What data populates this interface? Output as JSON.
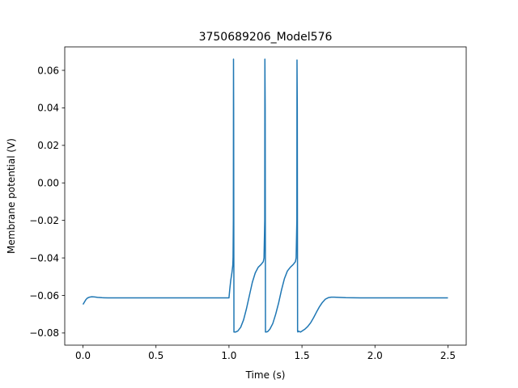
{
  "chart_data": {
    "type": "line",
    "title": "3750689206_Model576",
    "xlabel": "Time (s)",
    "ylabel": "Membrane potential (V)",
    "xlim": [
      -0.125,
      2.625
    ],
    "ylim": [
      -0.0865,
      0.0725
    ],
    "xticks": [
      0.0,
      0.5,
      1.0,
      1.5,
      2.0,
      2.5
    ],
    "xtick_labels": [
      "0.0",
      "0.5",
      "1.0",
      "1.5",
      "2.0",
      "2.5"
    ],
    "yticks": [
      -0.08,
      -0.06,
      -0.04,
      -0.02,
      0.0,
      0.02,
      0.04,
      0.06
    ],
    "ytick_labels": [
      "−0.08",
      "−0.06",
      "−0.04",
      "−0.02",
      "0.00",
      "0.02",
      "0.04",
      "0.06"
    ],
    "grid": false,
    "line_color": "#1f77b4",
    "series": [
      {
        "x": [
          0.0,
          0.01,
          0.02,
          0.03,
          0.045,
          0.06,
          0.08,
          0.1,
          0.13,
          0.17,
          0.2,
          0.3,
          0.5,
          0.7,
          0.9,
          1.0,
          1.005,
          1.012,
          1.02,
          1.026,
          1.028,
          1.03,
          1.031,
          1.032,
          1.034,
          1.045,
          1.06,
          1.08,
          1.1,
          1.12,
          1.14,
          1.16,
          1.18,
          1.2,
          1.22,
          1.235,
          1.24,
          1.245,
          1.246,
          1.248,
          1.25,
          1.252,
          1.254,
          1.265,
          1.28,
          1.3,
          1.32,
          1.34,
          1.36,
          1.38,
          1.4,
          1.42,
          1.44,
          1.455,
          1.46,
          1.465,
          1.466,
          1.468,
          1.47,
          1.472,
          1.474,
          1.49,
          1.5,
          1.51,
          1.52,
          1.54,
          1.56,
          1.58,
          1.6,
          1.62,
          1.64,
          1.66,
          1.68,
          1.7,
          1.72,
          1.75,
          1.8,
          1.9,
          2.0,
          2.2,
          2.5
        ],
        "y": [
          -0.0648,
          -0.0635,
          -0.0622,
          -0.0614,
          -0.0609,
          -0.0607,
          -0.0608,
          -0.061,
          -0.0612,
          -0.0613,
          -0.0613,
          -0.0613,
          -0.0613,
          -0.0613,
          -0.0613,
          -0.0613,
          -0.057,
          -0.052,
          -0.048,
          -0.044,
          -0.04,
          -0.02,
          0.066,
          0.04,
          -0.0795,
          -0.0795,
          -0.079,
          -0.077,
          -0.073,
          -0.067,
          -0.06,
          -0.053,
          -0.048,
          -0.045,
          -0.0435,
          -0.042,
          -0.04,
          -0.02,
          0.066,
          0.04,
          -0.0795,
          -0.0795,
          -0.0795,
          -0.0793,
          -0.078,
          -0.075,
          -0.07,
          -0.064,
          -0.057,
          -0.051,
          -0.047,
          -0.045,
          -0.0435,
          -0.042,
          -0.04,
          -0.02,
          0.0655,
          0.04,
          -0.079,
          -0.0795,
          -0.079,
          -0.0795,
          -0.079,
          -0.0785,
          -0.078,
          -0.0765,
          -0.0745,
          -0.0718,
          -0.0688,
          -0.066,
          -0.0637,
          -0.062,
          -0.0612,
          -0.0609,
          -0.0609,
          -0.061,
          -0.0612,
          -0.0613,
          -0.0613,
          -0.0613,
          -0.0613
        ]
      }
    ]
  }
}
